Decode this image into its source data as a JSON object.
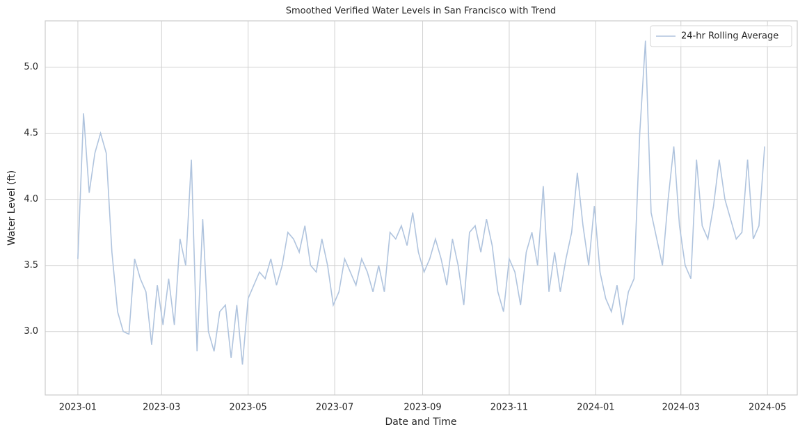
{
  "chart_data": {
    "type": "line",
    "title": "Smoothed Verified Water Levels in San Francisco with Trend",
    "x_label": "Date and Time",
    "y_label": "Water Level (ft)",
    "x": [
      "2023-01-01",
      "2023-01-05",
      "2023-01-09",
      "2023-01-13",
      "2023-01-17",
      "2023-01-21",
      "2023-01-25",
      "2023-01-29",
      "2023-02-02",
      "2023-02-06",
      "2023-02-10",
      "2023-02-14",
      "2023-02-18",
      "2023-02-22",
      "2023-02-26",
      "2023-03-02",
      "2023-03-06",
      "2023-03-10",
      "2023-03-14",
      "2023-03-18",
      "2023-03-22",
      "2023-03-26",
      "2023-03-30",
      "2023-04-03",
      "2023-04-07",
      "2023-04-11",
      "2023-04-15",
      "2023-04-19",
      "2023-04-23",
      "2023-04-27",
      "2023-05-01",
      "2023-05-05",
      "2023-05-09",
      "2023-05-13",
      "2023-05-17",
      "2023-05-21",
      "2023-05-25",
      "2023-05-29",
      "2023-06-02",
      "2023-06-06",
      "2023-06-10",
      "2023-06-14",
      "2023-06-18",
      "2023-06-22",
      "2023-06-26",
      "2023-06-30",
      "2023-07-04",
      "2023-07-08",
      "2023-07-12",
      "2023-07-16",
      "2023-07-20",
      "2023-07-24",
      "2023-07-28",
      "2023-08-01",
      "2023-08-05",
      "2023-08-09",
      "2023-08-13",
      "2023-08-17",
      "2023-08-21",
      "2023-08-25",
      "2023-08-29",
      "2023-09-02",
      "2023-09-06",
      "2023-09-10",
      "2023-09-14",
      "2023-09-18",
      "2023-09-22",
      "2023-09-26",
      "2023-09-30",
      "2023-10-04",
      "2023-10-08",
      "2023-10-12",
      "2023-10-16",
      "2023-10-20",
      "2023-10-24",
      "2023-10-28",
      "2023-11-01",
      "2023-11-05",
      "2023-11-09",
      "2023-11-13",
      "2023-11-17",
      "2023-11-21",
      "2023-11-25",
      "2023-11-29",
      "2023-12-03",
      "2023-12-07",
      "2023-12-11",
      "2023-12-15",
      "2023-12-19",
      "2023-12-23",
      "2023-12-27",
      "2023-12-31",
      "2024-01-04",
      "2024-01-08",
      "2024-01-12",
      "2024-01-16",
      "2024-01-20",
      "2024-01-24",
      "2024-01-28",
      "2024-02-01",
      "2024-02-05",
      "2024-02-09",
      "2024-02-13",
      "2024-02-17",
      "2024-02-21",
      "2024-02-25",
      "2024-02-29",
      "2024-03-04",
      "2024-03-08",
      "2024-03-12",
      "2024-03-16",
      "2024-03-20",
      "2024-03-24",
      "2024-03-28",
      "2024-04-01",
      "2024-04-05",
      "2024-04-09",
      "2024-04-13",
      "2024-04-17",
      "2024-04-21",
      "2024-04-25",
      "2024-04-29"
    ],
    "series": [
      {
        "name": "24-hr Rolling Average",
        "color": "#b0c4de",
        "values": [
          3.55,
          4.65,
          4.05,
          4.35,
          4.5,
          4.35,
          3.6,
          3.15,
          3.0,
          2.98,
          3.55,
          3.4,
          3.3,
          2.9,
          3.35,
          3.05,
          3.4,
          3.05,
          3.7,
          3.5,
          4.3,
          2.85,
          3.85,
          3.0,
          2.85,
          3.15,
          3.2,
          2.8,
          3.2,
          2.75,
          3.25,
          3.35,
          3.45,
          3.4,
          3.55,
          3.35,
          3.5,
          3.75,
          3.7,
          3.6,
          3.8,
          3.5,
          3.45,
          3.7,
          3.5,
          3.2,
          3.3,
          3.55,
          3.45,
          3.35,
          3.55,
          3.45,
          3.3,
          3.5,
          3.3,
          3.75,
          3.7,
          3.8,
          3.65,
          3.9,
          3.6,
          3.45,
          3.55,
          3.7,
          3.55,
          3.35,
          3.7,
          3.5,
          3.2,
          3.75,
          3.8,
          3.6,
          3.85,
          3.65,
          3.3,
          3.15,
          3.55,
          3.45,
          3.2,
          3.6,
          3.75,
          3.5,
          4.1,
          3.3,
          3.6,
          3.3,
          3.55,
          3.75,
          4.2,
          3.8,
          3.5,
          3.95,
          3.45,
          3.25,
          3.15,
          3.35,
          3.05,
          3.3,
          3.4,
          4.5,
          5.2,
          3.9,
          3.7,
          3.5,
          4.0,
          4.4,
          3.8,
          3.5,
          3.4,
          4.3,
          3.8,
          3.7,
          3.95,
          4.3,
          4.0,
          3.85,
          3.7,
          3.75,
          4.3,
          3.7,
          3.8,
          4.4
        ]
      }
    ],
    "xlim": [
      "2022-12-09",
      "2024-05-22"
    ],
    "xticks": [
      {
        "value": "2023-01-01",
        "label": "2023-01"
      },
      {
        "value": "2023-03-01",
        "label": "2023-03"
      },
      {
        "value": "2023-05-01",
        "label": "2023-05"
      },
      {
        "value": "2023-07-01",
        "label": "2023-07"
      },
      {
        "value": "2023-09-01",
        "label": "2023-09"
      },
      {
        "value": "2023-11-01",
        "label": "2023-11"
      },
      {
        "value": "2024-01-01",
        "label": "2024-01"
      },
      {
        "value": "2024-03-01",
        "label": "2024-03"
      },
      {
        "value": "2024-05-01",
        "label": "2024-05"
      }
    ],
    "ylim": [
      2.52,
      5.35
    ],
    "yticks": [
      {
        "value": 3,
        "label": "3.0"
      },
      3.5,
      {
        "value": 4,
        "label": "4.0"
      },
      4.5,
      {
        "value": 5,
        "label": "5.0"
      }
    ],
    "grid": true,
    "legend": "upper right"
  }
}
